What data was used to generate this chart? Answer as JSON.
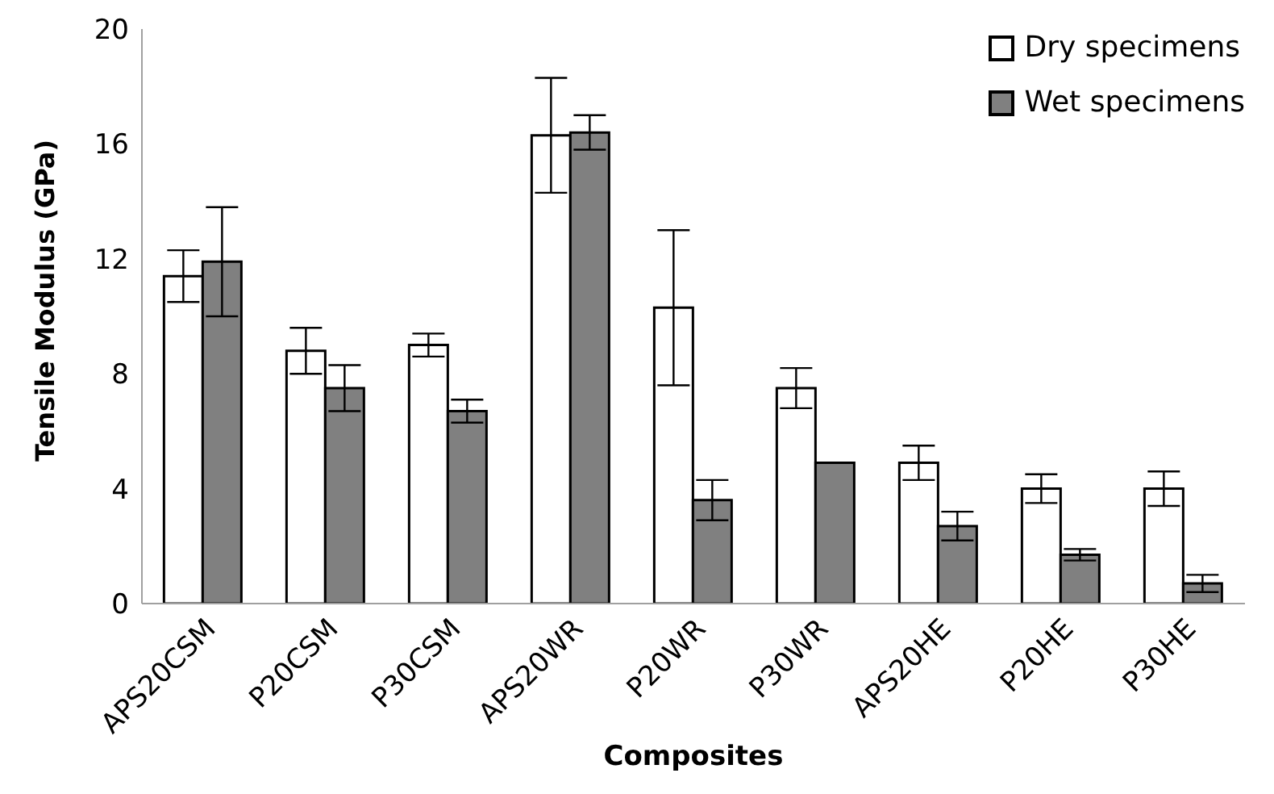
{
  "chart_data": {
    "type": "bar",
    "xlabel": "Composites",
    "ylabel": "Tensile Modulus (GPa)",
    "categories": [
      "APS20CSM",
      "P20CSM",
      "P30CSM",
      "APS20WR",
      "P20WR",
      "P30WR",
      "APS20HE",
      "P20HE",
      "P30HE"
    ],
    "series": [
      {
        "name": "Dry specimens",
        "color": "#ffffff",
        "values": [
          11.4,
          8.8,
          9.0,
          16.3,
          10.3,
          7.5,
          4.9,
          4.0,
          4.0
        ],
        "errors": [
          0.9,
          0.8,
          0.4,
          2.0,
          2.7,
          0.7,
          0.6,
          0.5,
          0.6
        ]
      },
      {
        "name": "Wet specimens",
        "color": "#808080",
        "values": [
          11.9,
          7.5,
          6.7,
          16.4,
          3.6,
          4.9,
          2.7,
          1.7,
          0.7
        ],
        "errors": [
          1.9,
          0.8,
          0.4,
          0.6,
          0.7,
          0,
          0.5,
          0.2,
          0.3
        ]
      }
    ],
    "ylim": [
      0,
      20
    ],
    "yticks": [
      0,
      4,
      8,
      12,
      16,
      20
    ],
    "legend": "top right"
  }
}
